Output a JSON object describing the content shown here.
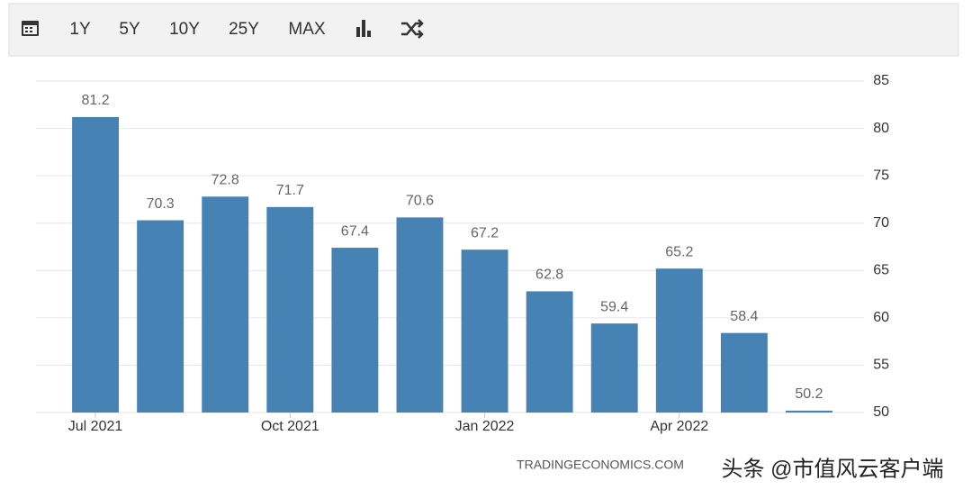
{
  "toolbar": {
    "buttons": [
      "1Y",
      "5Y",
      "10Y",
      "25Y",
      "MAX"
    ]
  },
  "chart_data": {
    "type": "bar",
    "categories": [
      "Jul 2021",
      null,
      null,
      "Oct 2021",
      null,
      null,
      "Jan 2022",
      null,
      null,
      "Apr 2022",
      null,
      null
    ],
    "values": [
      81.2,
      70.3,
      72.8,
      71.7,
      67.4,
      70.6,
      67.2,
      62.8,
      59.4,
      65.2,
      58.4,
      50.2
    ],
    "color": "#4682b4",
    "ylim": [
      50,
      85
    ],
    "yticks": [
      50,
      55,
      60,
      65,
      70,
      75,
      80,
      85
    ],
    "grid": true,
    "source": "TRADINGECONOMICS.COM"
  },
  "watermark": "头条 @市值风云客户端"
}
